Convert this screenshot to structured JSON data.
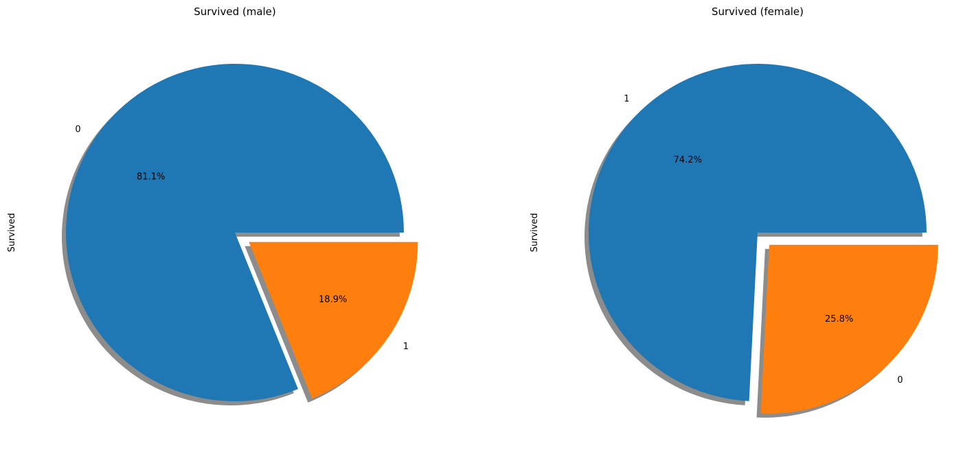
{
  "chart_data": [
    {
      "type": "pie",
      "title": "Survived (male)",
      "ylabel": "Survived",
      "categories": [
        "0",
        "1"
      ],
      "values": [
        81.1,
        18.9
      ],
      "labels": [
        "81.1%",
        "18.9%"
      ],
      "colors": [
        "#1f77b4",
        "#ff7f0e"
      ],
      "explode": [
        0,
        0.1
      ],
      "shadow": true,
      "startangle": 0,
      "direction": "counterclockwise"
    },
    {
      "type": "pie",
      "title": "Survived (female)",
      "ylabel": "Survived",
      "categories": [
        "1",
        "0"
      ],
      "values": [
        74.2,
        25.8
      ],
      "labels": [
        "74.2%",
        "25.8%"
      ],
      "colors": [
        "#1f77b4",
        "#ff7f0e"
      ],
      "explode": [
        0,
        0.1
      ],
      "shadow": true,
      "startangle": 0,
      "direction": "counterclockwise"
    }
  ]
}
